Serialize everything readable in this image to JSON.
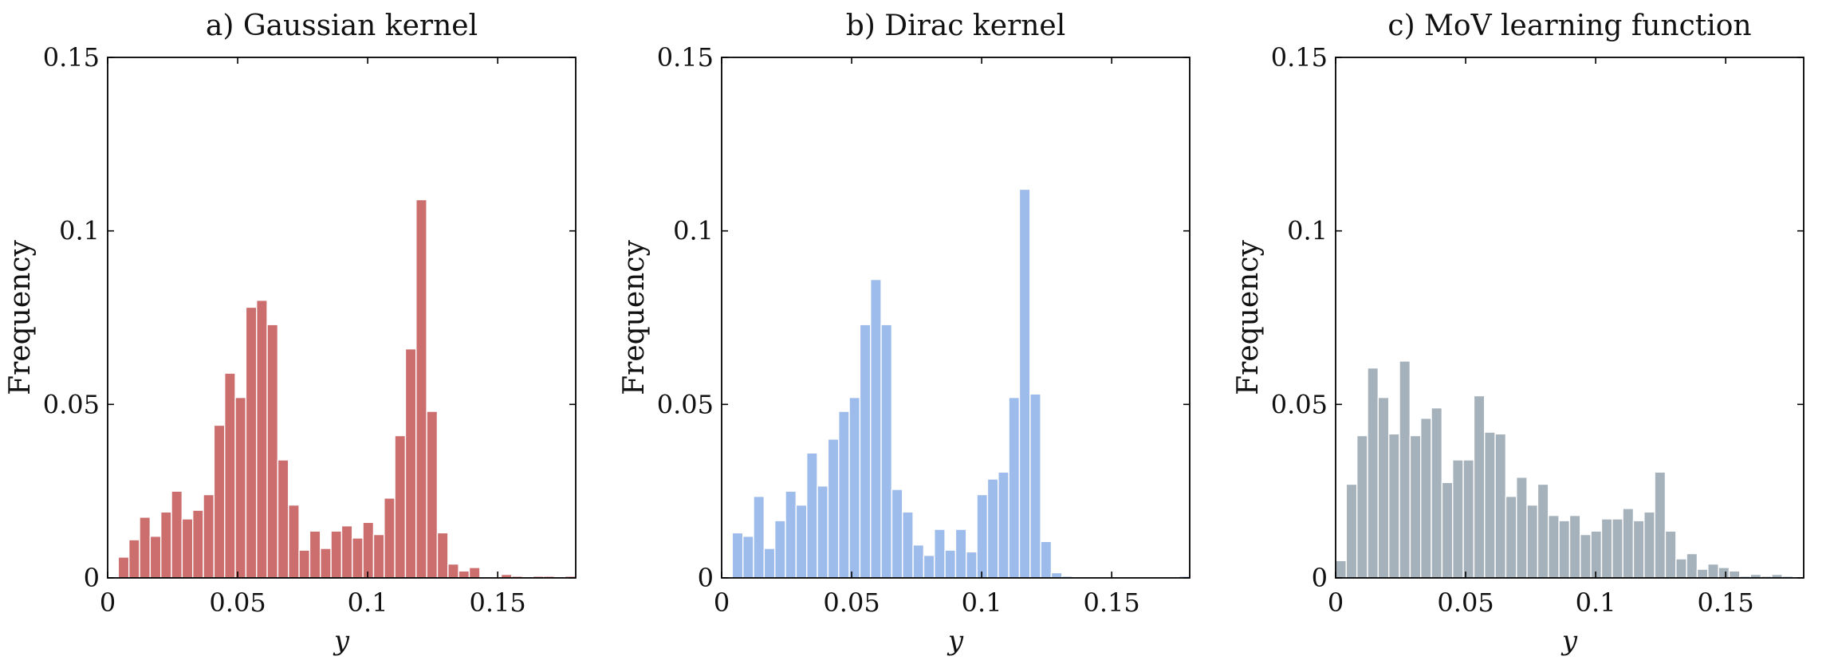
{
  "figure": {
    "panels": [
      {
        "id": "a",
        "title": "a) Gaussian kernel",
        "color": "#cd6e6e"
      },
      {
        "id": "b",
        "title": "b) Dirac kernel",
        "color": "#9ebceb"
      },
      {
        "id": "c",
        "title": "c) MoV learning function",
        "color": "#a6b2bb"
      }
    ]
  },
  "chart_data": [
    {
      "type": "bar",
      "title": "a) Gaussian kernel",
      "xlabel": "y",
      "ylabel": "Frequency",
      "xlim": [
        0,
        0.18
      ],
      "ylim": [
        0,
        0.15
      ],
      "xticks": [
        "0",
        "0.05",
        "0.1",
        "0.15"
      ],
      "xtick_values": [
        0,
        0.05,
        0.1,
        0.15
      ],
      "yticks": [
        "0",
        "0.05",
        "0.1",
        "0.15"
      ],
      "ytick_values": [
        0,
        0.05,
        0.1,
        0.15
      ],
      "bin_width": 0.00409,
      "bin_start": 0.00409,
      "values": [
        0.006,
        0.011,
        0.0175,
        0.012,
        0.019,
        0.025,
        0.017,
        0.0195,
        0.024,
        0.044,
        0.059,
        0.052,
        0.078,
        0.08,
        0.073,
        0.034,
        0.021,
        0.008,
        0.0135,
        0.0085,
        0.0135,
        0.015,
        0.0115,
        0.016,
        0.0125,
        0.023,
        0.041,
        0.066,
        0.109,
        0.048,
        0.013,
        0.004,
        0.002,
        0.003,
        0.0,
        0.0,
        0.001,
        0.0005,
        0.0,
        0.0005,
        0.0005,
        0.0,
        0.0005
      ]
    },
    {
      "type": "bar",
      "title": "b) Dirac kernel",
      "xlabel": "y",
      "ylabel": "Frequency",
      "xlim": [
        0,
        0.18
      ],
      "ylim": [
        0,
        0.15
      ],
      "xticks": [
        "0",
        "0.05",
        "0.1",
        "0.15"
      ],
      "xtick_values": [
        0,
        0.05,
        0.1,
        0.15
      ],
      "yticks": [
        "0",
        "0.05",
        "0.1",
        "0.15"
      ],
      "ytick_values": [
        0,
        0.05,
        0.1,
        0.15
      ],
      "bin_width": 0.00409,
      "bin_start": 0.00409,
      "values": [
        0.013,
        0.012,
        0.0235,
        0.0085,
        0.0165,
        0.025,
        0.021,
        0.036,
        0.0265,
        0.04,
        0.048,
        0.052,
        0.073,
        0.086,
        0.073,
        0.0255,
        0.019,
        0.0095,
        0.0065,
        0.014,
        0.008,
        0.014,
        0.0075,
        0.024,
        0.0285,
        0.0305,
        0.052,
        0.112,
        0.053,
        0.0105,
        0.0015,
        0.0005,
        0.0,
        0.0,
        0.0,
        0.0,
        0.0,
        0.0,
        0.0,
        0.0,
        0.0,
        0.0,
        0.0005
      ]
    },
    {
      "type": "bar",
      "title": "c) MoV learning function",
      "xlabel": "y",
      "ylabel": "Frequency",
      "xlim": [
        0,
        0.18
      ],
      "ylim": [
        0,
        0.15
      ],
      "xticks": [
        "0",
        "0.05",
        "0.1",
        "0.15"
      ],
      "xtick_values": [
        0,
        0.05,
        0.1,
        0.15
      ],
      "yticks": [
        "0",
        "0.05",
        "0.1",
        "0.15"
      ],
      "ytick_values": [
        0,
        0.05,
        0.1,
        0.15
      ],
      "bin_width": 0.00409,
      "bin_start": 0.0,
      "values": [
        0.005,
        0.027,
        0.041,
        0.0605,
        0.052,
        0.0415,
        0.0625,
        0.041,
        0.046,
        0.049,
        0.0275,
        0.034,
        0.034,
        0.0525,
        0.042,
        0.0415,
        0.0235,
        0.029,
        0.021,
        0.027,
        0.018,
        0.0165,
        0.018,
        0.0125,
        0.0135,
        0.017,
        0.017,
        0.02,
        0.0165,
        0.019,
        0.0305,
        0.0135,
        0.0055,
        0.007,
        0.0025,
        0.004,
        0.003,
        0.002,
        0.0005,
        0.001,
        0.0005,
        0.001,
        0.0005
      ]
    }
  ]
}
